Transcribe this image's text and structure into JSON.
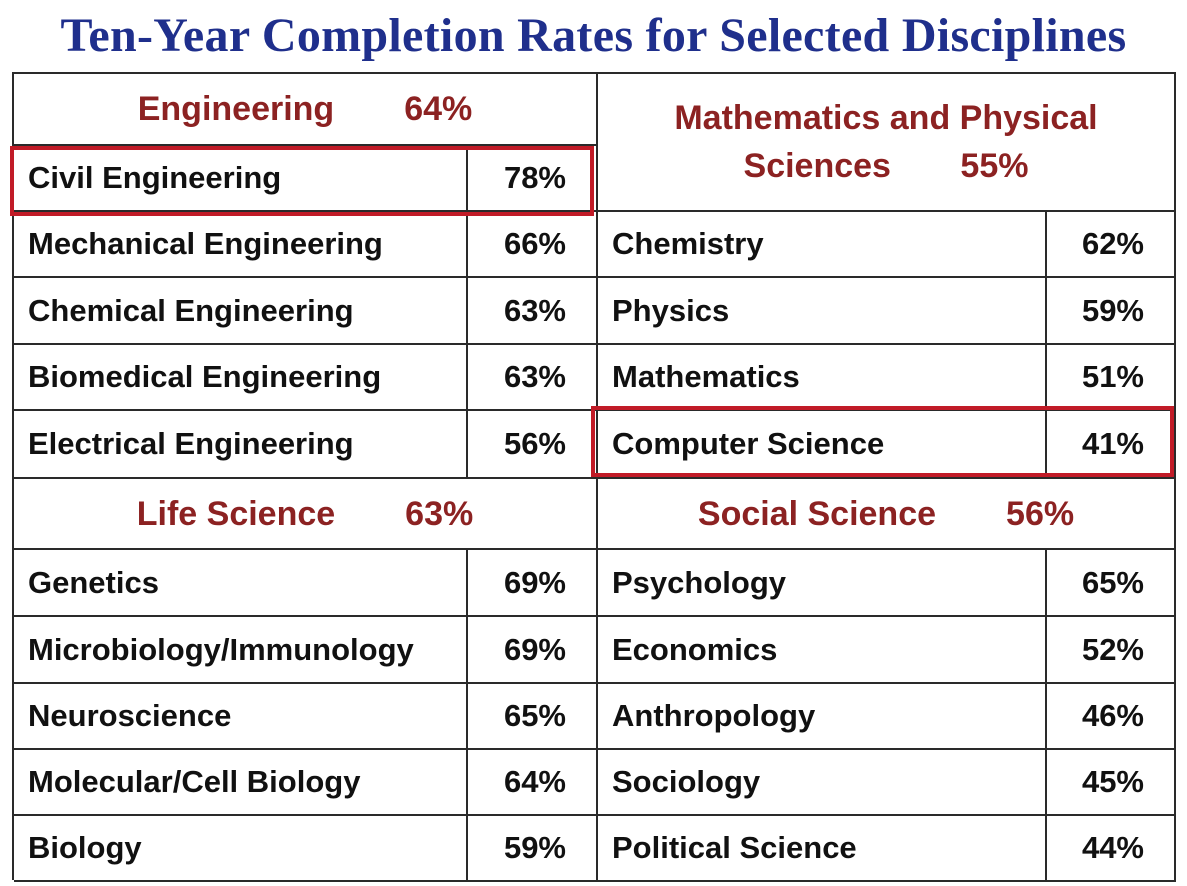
{
  "title": "Ten-Year Completion Rates for Selected Disciplines",
  "highlight_color": "#c11b27",
  "heading_color": "#8c2222",
  "title_color": "#1f2f8c",
  "sections": {
    "engineering": {
      "name": "Engineering",
      "rate": "64%",
      "rows": [
        {
          "name": "Civil Engineering",
          "rate": "78%",
          "highlighted": true
        },
        {
          "name": "Mechanical Engineering",
          "rate": "66%"
        },
        {
          "name": "Chemical Engineering",
          "rate": "63%"
        },
        {
          "name": "Biomedical Engineering",
          "rate": "63%"
        },
        {
          "name": "Electrical Engineering",
          "rate": "56%"
        }
      ]
    },
    "math_physical": {
      "name_line1": "Mathematics and Physical",
      "name_line2": "Sciences",
      "rate": "55%",
      "rows": [
        {
          "name": "Chemistry",
          "rate": "62%"
        },
        {
          "name": "Physics",
          "rate": "59%"
        },
        {
          "name": "Mathematics",
          "rate": "51%"
        },
        {
          "name": "Computer Science",
          "rate": "41%",
          "highlighted": true
        }
      ]
    },
    "life_science": {
      "name": "Life Science",
      "rate": "63%",
      "rows": [
        {
          "name": "Genetics",
          "rate": "69%"
        },
        {
          "name": "Microbiology/Immunology",
          "rate": "69%"
        },
        {
          "name": "Neuroscience",
          "rate": "65%"
        },
        {
          "name": "Molecular/Cell Biology",
          "rate": "64%"
        },
        {
          "name": "Biology",
          "rate": "59%"
        }
      ]
    },
    "social_science": {
      "name": "Social Science",
      "rate": "56%",
      "rows": [
        {
          "name": "Psychology",
          "rate": "65%"
        },
        {
          "name": "Economics",
          "rate": "52%"
        },
        {
          "name": "Anthropology",
          "rate": "46%"
        },
        {
          "name": "Sociology",
          "rate": "45%"
        },
        {
          "name": "Political Science",
          "rate": "44%"
        }
      ]
    }
  }
}
